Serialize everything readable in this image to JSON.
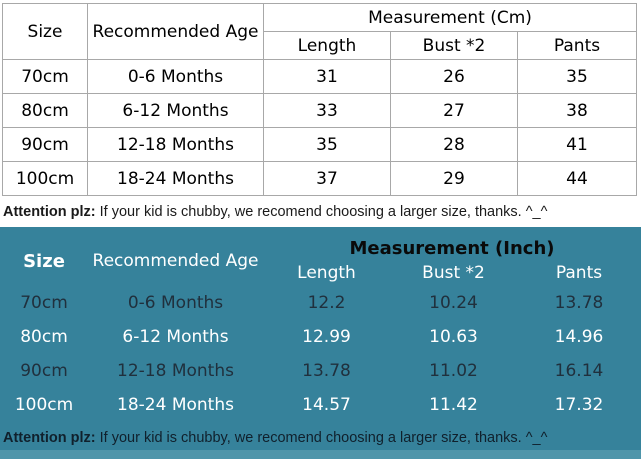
{
  "colors": {
    "page_bg": "#ffffff",
    "teal_bg": "#36829B",
    "teal_strip": "#4E95AA",
    "grid_line": "#a8a8a8",
    "teal_dark_text": "#20303d",
    "teal_light_text": "#ffffff"
  },
  "cm_table": {
    "headers": {
      "size": "Size",
      "age": "Recommended Age",
      "group": "Measurement (Cm)",
      "length": "Length",
      "bust": "Bust *2",
      "pants": "Pants"
    },
    "rows": [
      {
        "size": "70cm",
        "age": "0-6 Months",
        "length": "31",
        "bust": "26",
        "pants": "35"
      },
      {
        "size": "80cm",
        "age": "6-12 Months",
        "length": "33",
        "bust": "27",
        "pants": "38"
      },
      {
        "size": "90cm",
        "age": "12-18 Months",
        "length": "35",
        "bust": "28",
        "pants": "41"
      },
      {
        "size": "100cm",
        "age": "18-24 Months",
        "length": "37",
        "bust": "29",
        "pants": "44"
      }
    ],
    "attention_bold": "Attention plz:",
    "attention_text": " If your kid is chubby, we recomend choosing a larger size, thanks. ^_^"
  },
  "inch_table": {
    "headers": {
      "size": "Size",
      "age": "Recommended Age",
      "group": "Measurement (Inch)",
      "length": "Length",
      "bust": "Bust *2",
      "pants": "Pants"
    },
    "rows": [
      {
        "size": "70cm",
        "age": "0-6 Months",
        "length": "12.2",
        "bust": "10.24",
        "pants": "13.78"
      },
      {
        "size": "80cm",
        "age": "6-12 Months",
        "length": "12.99",
        "bust": "10.63",
        "pants": "14.96"
      },
      {
        "size": "90cm",
        "age": "12-18 Months",
        "length": "13.78",
        "bust": "11.02",
        "pants": "16.14"
      },
      {
        "size": "100cm",
        "age": "18-24 Months",
        "length": "14.57",
        "bust": "11.42",
        "pants": "17.32"
      }
    ],
    "attention_bold": "Attention plz:",
    "attention_text": " If your kid is chubby, we recomend choosing a larger size, thanks. ^_^"
  },
  "chart_data": [
    {
      "type": "table",
      "title": "Measurement (Cm)",
      "columns": [
        "Size",
        "Recommended Age",
        "Length",
        "Bust *2",
        "Pants"
      ],
      "rows": [
        [
          "70cm",
          "0-6 Months",
          31,
          26,
          35
        ],
        [
          "80cm",
          "6-12 Months",
          33,
          27,
          38
        ],
        [
          "90cm",
          "12-18 Months",
          35,
          28,
          41
        ],
        [
          "100cm",
          "18-24 Months",
          37,
          29,
          44
        ]
      ],
      "note": "Attention plz: If your kid is chubby, we recomend choosing a larger size, thanks. ^_^"
    },
    {
      "type": "table",
      "title": "Measurement (Inch)",
      "columns": [
        "Size",
        "Recommended Age",
        "Length",
        "Bust *2",
        "Pants"
      ],
      "rows": [
        [
          "70cm",
          "0-6 Months",
          12.2,
          10.24,
          13.78
        ],
        [
          "80cm",
          "6-12 Months",
          12.99,
          10.63,
          14.96
        ],
        [
          "90cm",
          "12-18 Months",
          13.78,
          11.02,
          16.14
        ],
        [
          "100cm",
          "18-24 Months",
          14.57,
          11.42,
          17.32
        ]
      ],
      "note": "Attention plz: If your kid is chubby, we recomend choosing a larger size, thanks. ^_^"
    }
  ]
}
